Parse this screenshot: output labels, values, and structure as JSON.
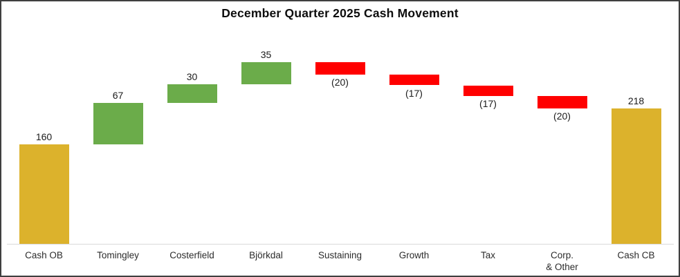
{
  "chart_data": {
    "type": "bar",
    "subtype": "waterfall",
    "title": "December Quarter 2025 Cash Movement",
    "categories": [
      "Cash OB",
      "Tomingley",
      "Costerfield",
      "Björkdal",
      "Sustaining",
      "Growth",
      "Tax",
      "Corp.\n& Other",
      "Cash CB"
    ],
    "values": [
      160,
      67,
      30,
      35,
      -20,
      -17,
      -17,
      -20,
      218
    ],
    "bar_kinds": [
      "total",
      "increase",
      "increase",
      "increase",
      "decrease",
      "decrease",
      "decrease",
      "decrease",
      "total"
    ],
    "data_labels": [
      "160",
      "67",
      "30",
      "35",
      "(20)",
      "(17)",
      "(17)",
      "(20)",
      "218"
    ],
    "cumulative": [
      160,
      227,
      257,
      292,
      272,
      255,
      238,
      218,
      218
    ],
    "colors": {
      "total": "#DCB22C",
      "increase": "#6BAC4A",
      "decrease": "#FF0000",
      "axis_line": "#D9D9D9",
      "border": "#3F3F3F"
    },
    "ylim": [
      0,
      320
    ],
    "y_axis_visible": false,
    "gridlines": false,
    "legend": false,
    "data_label_position": {
      "positive": "above bar",
      "negative": "below bar"
    }
  }
}
